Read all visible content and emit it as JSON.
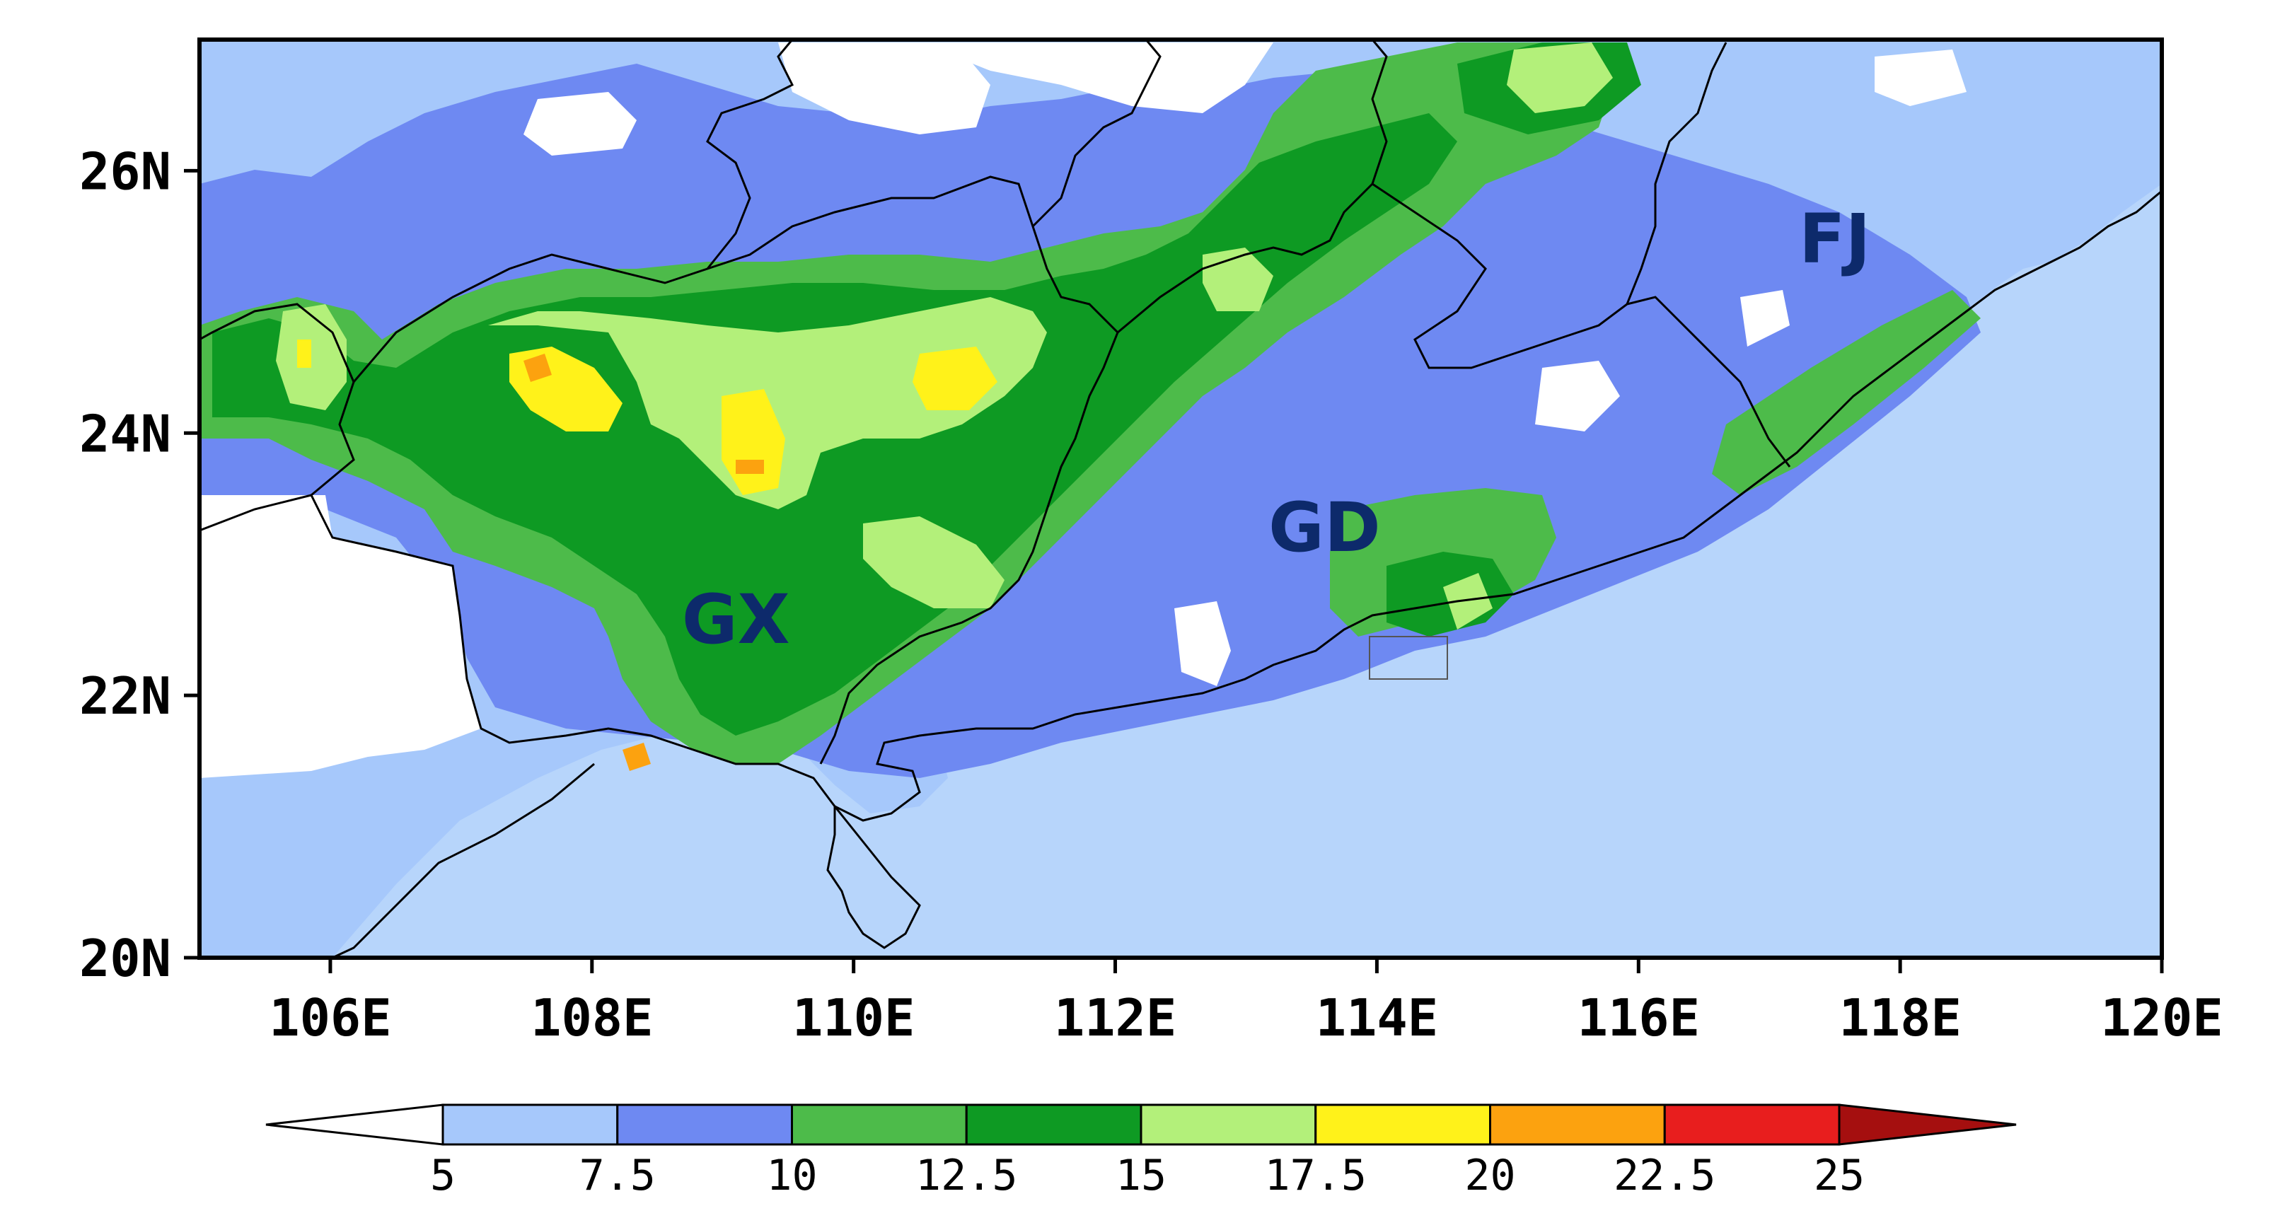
{
  "map": {
    "lon_range": [
      105,
      120
    ],
    "lat_range": [
      20,
      27
    ],
    "x_ticks": [
      {
        "value": 106,
        "label": "106E"
      },
      {
        "value": 108,
        "label": "108E"
      },
      {
        "value": 110,
        "label": "110E"
      },
      {
        "value": 112,
        "label": "112E"
      },
      {
        "value": 114,
        "label": "114E"
      },
      {
        "value": 116,
        "label": "116E"
      },
      {
        "value": 118,
        "label": "118E"
      },
      {
        "value": 120,
        "label": "120E"
      }
    ],
    "y_ticks": [
      {
        "value": 20,
        "label": "20N"
      },
      {
        "value": 22,
        "label": "22N"
      },
      {
        "value": 24,
        "label": "24N"
      },
      {
        "value": 26,
        "label": "26N"
      }
    ],
    "regions": [
      {
        "label": "GX",
        "lon": 109.1,
        "lat": 22.4
      },
      {
        "label": "GD",
        "lon": 113.6,
        "lat": 23.1
      },
      {
        "label": "FJ",
        "lon": 117.5,
        "lat": 25.3
      }
    ]
  },
  "colorbar": {
    "levels": [
      "5",
      "7.5",
      "10",
      "12.5",
      "15",
      "17.5",
      "20",
      "22.5",
      "25"
    ],
    "colors": [
      "#a6c8fb",
      "#6e89f2",
      "#4dbb4a",
      "#0e9a23",
      "#b3f07a",
      "#fff21a",
      "#fca20f",
      "#e81e1e",
      "#a50f0f"
    ],
    "below_color": "#ffffff",
    "sea_color": "#b7d5fb"
  }
}
